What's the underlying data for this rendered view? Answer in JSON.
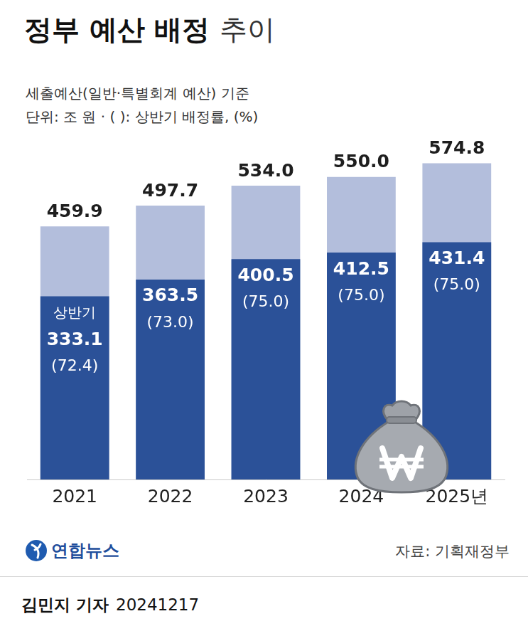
{
  "chart_data": {
    "type": "bar",
    "title": "정부 예산 배정 추이",
    "subtitle": [
      "세출예산(일반·특별회계 예산) 기준",
      "단위: 조 원 · ( ): 상반기 배정률, (%)"
    ],
    "publisher": "연합뉴스",
    "source": "자료: 기획재정부",
    "byline": "김민지 기자",
    "date": "20241217",
    "categories": [
      "2021",
      "2022",
      "2023",
      "2024",
      "2025년"
    ],
    "series": [
      {
        "color": "#b3bedc",
        "values": [
          459.9,
          497.7,
          534.0,
          550.0,
          574.8
        ],
        "value_labels": [
          "459.9",
          "497.7",
          "534.0",
          "550.0",
          "574.8"
        ]
      },
      {
        "name": "상반기",
        "color": "#2b5198",
        "values": [
          333.1,
          363.5,
          400.5,
          412.5,
          431.4
        ],
        "value_labels": [
          "333.1",
          "363.5",
          "400.5",
          "412.5",
          "431.4"
        ],
        "rates": [
          72.4,
          73.0,
          75.0,
          75.0,
          75.0
        ],
        "rate_labels": [
          "(72.4)",
          "(73.0)",
          "(75.0)",
          "(75.0)",
          "(75.0)"
        ]
      }
    ],
    "stacked": false,
    "grid": false,
    "data_labels": true,
    "tick_labels": "x",
    "ylim": [
      0,
      600
    ],
    "yticks": []
  }
}
